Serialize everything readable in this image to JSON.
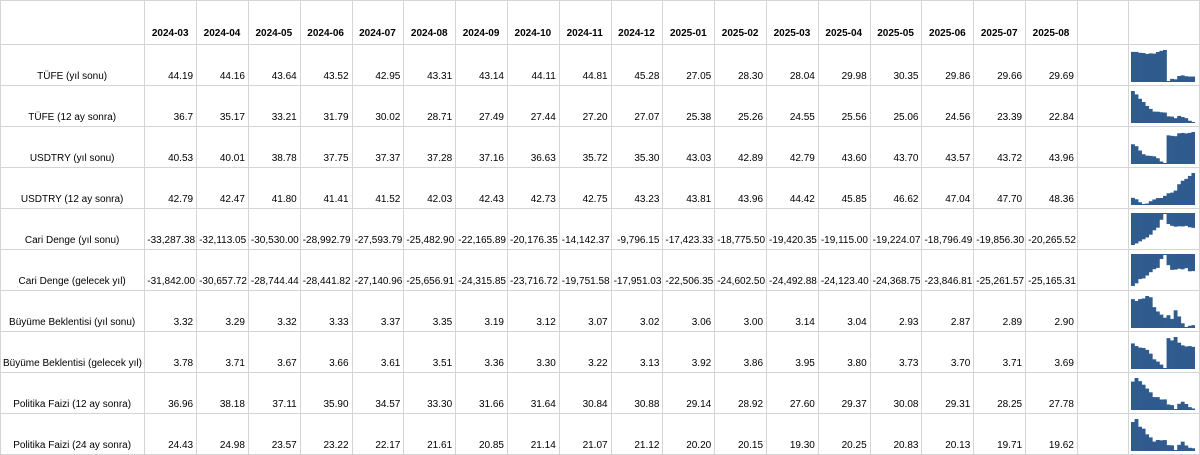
{
  "colors": {
    "bar": "#2f5b8e",
    "grid": "#d4d4d4"
  },
  "columns": [
    "2024-03",
    "2024-04",
    "2024-05",
    "2024-06",
    "2024-07",
    "2024-08",
    "2024-09",
    "2024-10",
    "2024-11",
    "2024-12",
    "2025-01",
    "2025-02",
    "2025-03",
    "2025-04",
    "2025-05",
    "2025-06",
    "2025-07",
    "2025-08"
  ],
  "rows": [
    {
      "label": "TÜFE (yıl sonu)",
      "values": [
        "44.19",
        "44.16",
        "43.64",
        "43.52",
        "42.95",
        "43.31",
        "43.14",
        "44.11",
        "44.81",
        "45.28",
        "27.05",
        "28.30",
        "28.04",
        "29.98",
        "30.35",
        "29.86",
        "29.66",
        "29.69"
      ]
    },
    {
      "label": "TÜFE (12 ay sonra)",
      "values": [
        "36.7",
        "35.17",
        "33.21",
        "31.79",
        "30.02",
        "28.71",
        "27.49",
        "27.44",
        "27.20",
        "27.07",
        "25.38",
        "25.26",
        "24.55",
        "25.56",
        "25.06",
        "24.56",
        "23.39",
        "22.84"
      ]
    },
    {
      "label": "USDTRY (yıl sonu)",
      "values": [
        "40.53",
        "40.01",
        "38.78",
        "37.75",
        "37.37",
        "37.28",
        "37.16",
        "36.63",
        "35.72",
        "35.30",
        "43.03",
        "42.89",
        "42.79",
        "43.60",
        "43.70",
        "43.57",
        "43.72",
        "43.96"
      ]
    },
    {
      "label": "USDTRY (12 ay sonra)",
      "values": [
        "42.79",
        "42.47",
        "41.80",
        "41.41",
        "41.52",
        "42.03",
        "42.43",
        "42.73",
        "42.75",
        "43.23",
        "43.81",
        "43.96",
        "44.42",
        "45.85",
        "46.62",
        "47.04",
        "47.70",
        "48.36"
      ]
    },
    {
      "label": "Cari Denge (yıl sonu)",
      "values": [
        "-33,287.38",
        "-32,113.05",
        "-30,530.00",
        "-28,992.79",
        "-27,593.79",
        "-25,482.90",
        "-22,165.89",
        "-20,176.35",
        "-14,142.37",
        "-9,796.15",
        "-17,423.33",
        "-18,775.50",
        "-19,420.35",
        "-19,115.00",
        "-19,224.07",
        "-18,796.49",
        "-19,856.30",
        "-20,265.52"
      ]
    },
    {
      "label": "Cari Denge (gelecek yıl)",
      "values": [
        "-31,842.00",
        "-30,657.72",
        "-28,744.44",
        "-28,441.82",
        "-27,140.96",
        "-25,656.91",
        "-24,315.85",
        "-23,716.72",
        "-19,751.58",
        "-17,951.03",
        "-22,506.35",
        "-24,602.50",
        "-24,492.88",
        "-24,123.40",
        "-24,368.75",
        "-23,846.81",
        "-25,261.57",
        "-25,165.31"
      ]
    },
    {
      "label": "Büyüme Beklentisi (yıl sonu)",
      "values": [
        "3.32",
        "3.29",
        "3.32",
        "3.33",
        "3.37",
        "3.35",
        "3.19",
        "3.12",
        "3.07",
        "3.02",
        "3.06",
        "3.00",
        "3.14",
        "3.04",
        "2.93",
        "2.87",
        "2.89",
        "2.90"
      ]
    },
    {
      "label": "Büyüme Beklentisi (gelecek yıl)",
      "values": [
        "3.78",
        "3.71",
        "3.67",
        "3.66",
        "3.61",
        "3.51",
        "3.36",
        "3.30",
        "3.22",
        "3.13",
        "3.92",
        "3.86",
        "3.95",
        "3.80",
        "3.73",
        "3.70",
        "3.71",
        "3.69"
      ]
    },
    {
      "label": "Politika Faizi (12 ay sonra)",
      "values": [
        "36.96",
        "38.18",
        "37.11",
        "35.90",
        "34.57",
        "33.30",
        "31.66",
        "31.64",
        "30.84",
        "30.88",
        "29.14",
        "28.92",
        "27.60",
        "29.37",
        "30.08",
        "29.31",
        "28.25",
        "27.78"
      ]
    },
    {
      "label": "Politika Faizi (24 ay sonra)",
      "values": [
        "24.43",
        "24.98",
        "23.57",
        "23.22",
        "22.17",
        "21.61",
        "20.85",
        "21.14",
        "21.07",
        "21.12",
        "20.20",
        "20.15",
        "19.30",
        "20.25",
        "20.83",
        "20.13",
        "19.71",
        "19.62"
      ]
    }
  ]
}
